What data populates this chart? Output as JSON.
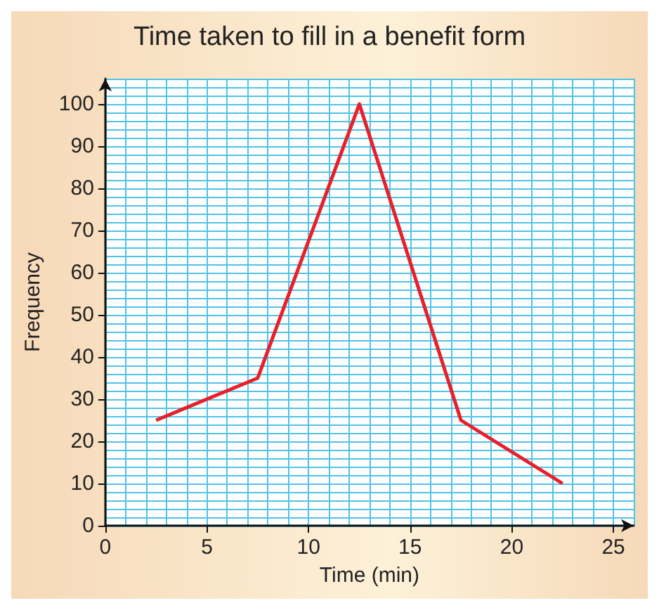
{
  "chart_data": {
    "type": "line",
    "title": "Time taken to fill in a benefit form",
    "xlabel": "Time (min)",
    "ylabel": "Frequency",
    "x": [
      2.5,
      7.5,
      12.5,
      17.5,
      22.5
    ],
    "series": [
      {
        "color": "#e8202a",
        "values": [
          25,
          35,
          100,
          25,
          10
        ]
      }
    ],
    "xlim": [
      0,
      26
    ],
    "xticks": [
      0,
      5,
      10,
      15,
      20,
      25
    ],
    "ylim": [
      0,
      106
    ],
    "yticks": [
      0,
      10,
      20,
      30,
      40,
      50,
      60,
      70,
      80,
      90,
      100
    ],
    "grid": true,
    "marker": "none",
    "line_style": "solid"
  }
}
